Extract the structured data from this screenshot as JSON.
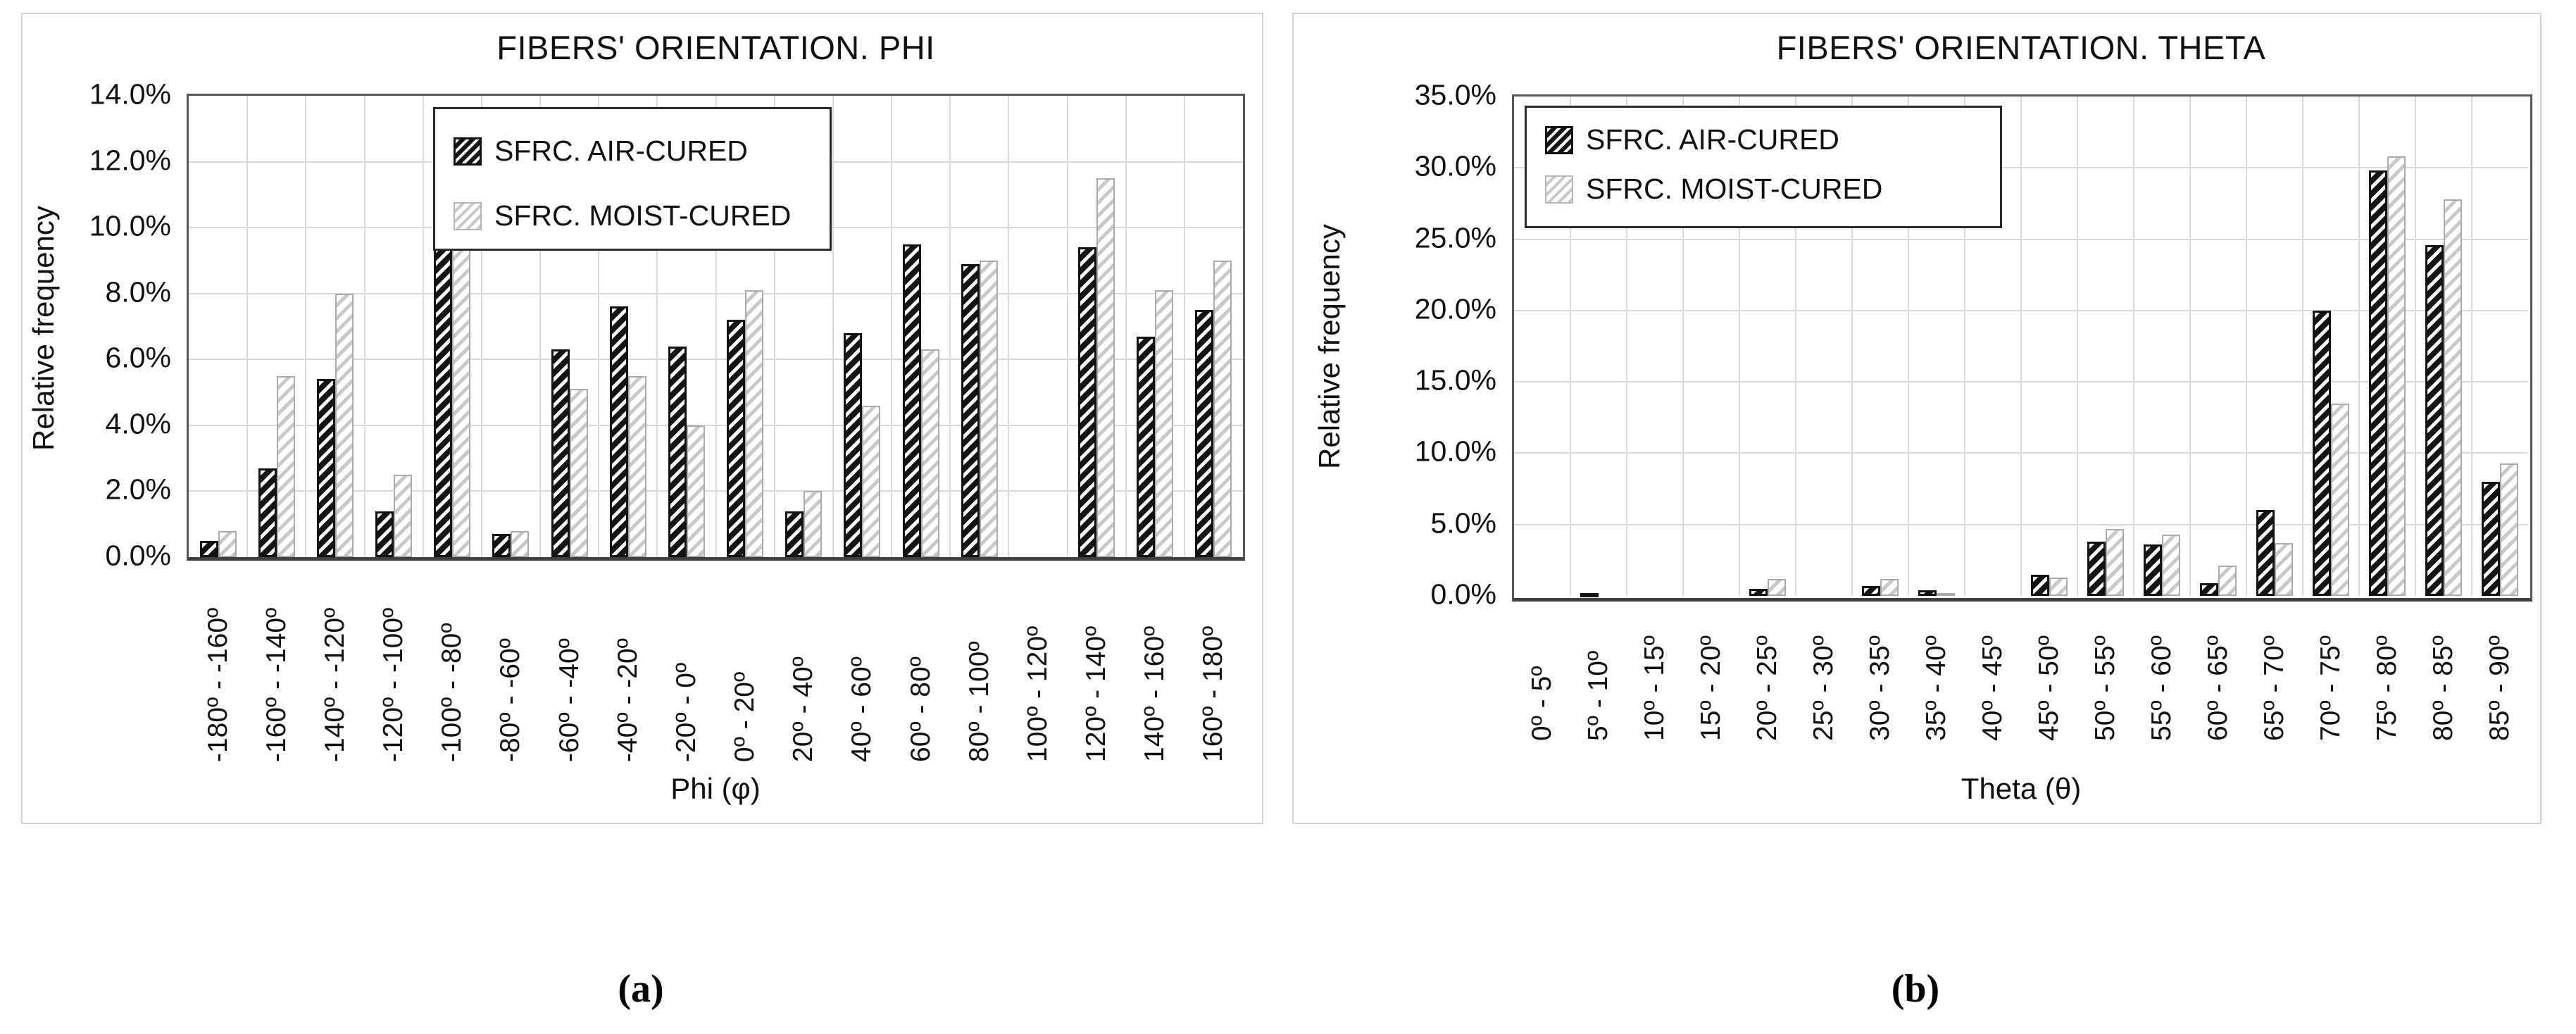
{
  "figure": {
    "caption_a": "(a)",
    "caption_b": "(b)"
  },
  "legend_labels": [
    "SFRC. AIR-CURED",
    "SFRC. MOIST-CURED"
  ],
  "chart_data": [
    {
      "type": "bar",
      "title": "FIBERS' ORIENTATION. PHI",
      "ylabel": "Relative frequency",
      "xlabel": "Phi (φ)",
      "ylim": [
        0,
        14
      ],
      "ytick_step": 2,
      "ytick_labels": [
        "0.0%",
        "2.0%",
        "4.0%",
        "6.0%",
        "8.0%",
        "10.0%",
        "12.0%",
        "14.0%"
      ],
      "grid": true,
      "legend_position": "top-inside",
      "categories": [
        "-180º - -160º",
        "-160º - -140º",
        "-140º - -120º",
        "-120º - -100º",
        "-100º - -80º",
        "-80º - -60º",
        "-60º - -40º",
        "-40º - -20º",
        "-20º - 0º",
        "0º - 20º",
        "20º - 40º",
        "40º - 60º",
        "60º - 80º",
        "80º - 100º",
        "100º - 120º",
        "120º - 140º",
        "140º - 160º",
        "160º - 180º"
      ],
      "series": [
        {
          "name": "SFRC. AIR-CURED",
          "values": [
            0.5,
            2.7,
            5.4,
            1.4,
            11.8,
            0.7,
            6.3,
            7.6,
            6.4,
            7.2,
            1.4,
            6.8,
            9.5,
            8.9,
            0.0,
            9.4,
            6.7,
            7.5
          ]
        },
        {
          "name": "SFRC. MOIST-CURED",
          "values": [
            0.8,
            5.5,
            8.0,
            2.5,
            9.4,
            0.8,
            5.1,
            5.5,
            4.0,
            8.1,
            2.0,
            4.6,
            6.3,
            9.0,
            0.0,
            11.5,
            8.1,
            9.0
          ]
        }
      ]
    },
    {
      "type": "bar",
      "title": "FIBERS' ORIENTATION. THETA",
      "ylabel": "Relative frequency",
      "xlabel": "Theta (θ)",
      "ylim": [
        0,
        35
      ],
      "ytick_step": 5,
      "ytick_labels": [
        "0.0%",
        "5.0%",
        "10.0%",
        "15.0%",
        "20.0%",
        "25.0%",
        "30.0%",
        "35.0%"
      ],
      "grid": true,
      "legend_position": "top-inside",
      "categories": [
        "0º - 5º",
        "5º - 10º",
        "10º - 15º",
        "15º - 20º",
        "20º - 25º",
        "25º - 30º",
        "30º - 35º",
        "35º - 40º",
        "40º - 45º",
        "45º - 50º",
        "50º - 55º",
        "55º - 60º",
        "60º - 65º",
        "65º - 70º",
        "70º - 75º",
        "75º - 80º",
        "80º - 85º",
        "85º - 90º"
      ],
      "series": [
        {
          "name": "SFRC. AIR-CURED",
          "values": [
            0.0,
            0.1,
            0.0,
            0.0,
            0.5,
            0.0,
            0.7,
            0.4,
            0.0,
            1.5,
            3.8,
            3.6,
            0.9,
            6.0,
            20.0,
            29.8,
            24.6,
            8.0
          ]
        },
        {
          "name": "SFRC. MOIST-CURED",
          "values": [
            0.0,
            0.0,
            0.0,
            0.0,
            1.2,
            0.0,
            1.2,
            0.2,
            0.0,
            1.3,
            4.7,
            4.3,
            2.1,
            3.7,
            13.5,
            30.8,
            27.8,
            9.3
          ]
        }
      ]
    }
  ],
  "colors": {
    "air_series": "#141414",
    "moist_series": "#c8c8c8",
    "gridline": "#d9d9d9",
    "plot_border": "#595959",
    "text": "#111111"
  }
}
